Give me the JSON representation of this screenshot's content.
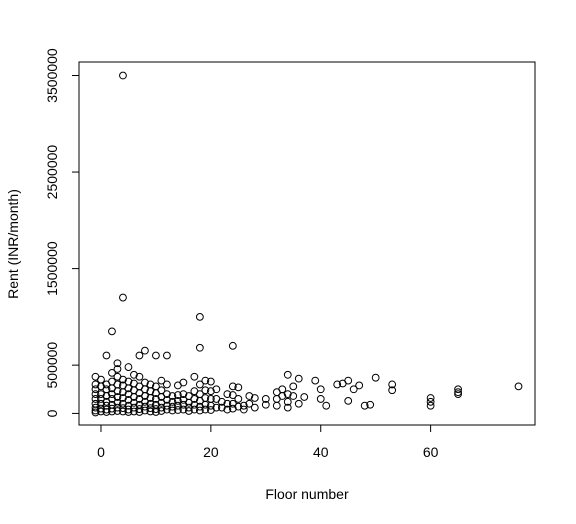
{
  "chart_data": {
    "type": "scatter",
    "title": "",
    "xlabel": "Floor number",
    "ylabel": "Rent (INR/month)",
    "xlim": [
      -4,
      79
    ],
    "ylim": [
      -120000,
      3640000
    ],
    "x_ticks": [
      0,
      20,
      40,
      60
    ],
    "y_ticks": [
      0,
      500000,
      1500000,
      2500000,
      3500000
    ],
    "grid": false,
    "legend": "none",
    "marker": "open-circle",
    "points": [
      [
        4,
        3500000
      ],
      [
        4,
        1200000
      ],
      [
        2,
        850000
      ],
      [
        18,
        1000000
      ],
      [
        18,
        680000
      ],
      [
        24,
        700000
      ],
      [
        8,
        650000
      ],
      [
        10,
        600000
      ],
      [
        12,
        600000
      ],
      [
        1,
        600000
      ],
      [
        7,
        600000
      ],
      [
        3,
        520000
      ],
      [
        5,
        480000
      ],
      [
        -1,
        380000
      ],
      [
        -1,
        300000
      ],
      [
        -1,
        250000
      ],
      [
        -1,
        200000
      ],
      [
        -1,
        150000
      ],
      [
        -1,
        100000
      ],
      [
        -1,
        60000
      ],
      [
        -1,
        30000
      ],
      [
        -1,
        10000
      ],
      [
        0,
        350000
      ],
      [
        0,
        280000
      ],
      [
        0,
        200000
      ],
      [
        0,
        150000
      ],
      [
        0,
        100000
      ],
      [
        0,
        50000
      ],
      [
        0,
        20000
      ],
      [
        1,
        300000
      ],
      [
        1,
        250000
      ],
      [
        1,
        180000
      ],
      [
        1,
        120000
      ],
      [
        1,
        80000
      ],
      [
        1,
        40000
      ],
      [
        1,
        15000
      ],
      [
        2,
        420000
      ],
      [
        2,
        330000
      ],
      [
        2,
        260000
      ],
      [
        2,
        200000
      ],
      [
        2,
        150000
      ],
      [
        2,
        90000
      ],
      [
        2,
        50000
      ],
      [
        2,
        20000
      ],
      [
        3,
        460000
      ],
      [
        3,
        380000
      ],
      [
        3,
        300000
      ],
      [
        3,
        230000
      ],
      [
        3,
        170000
      ],
      [
        3,
        110000
      ],
      [
        3,
        60000
      ],
      [
        3,
        25000
      ],
      [
        4,
        350000
      ],
      [
        4,
        290000
      ],
      [
        4,
        220000
      ],
      [
        4,
        160000
      ],
      [
        4,
        100000
      ],
      [
        4,
        55000
      ],
      [
        4,
        20000
      ],
      [
        5,
        330000
      ],
      [
        5,
        260000
      ],
      [
        5,
        200000
      ],
      [
        5,
        140000
      ],
      [
        5,
        80000
      ],
      [
        5,
        40000
      ],
      [
        5,
        15000
      ],
      [
        6,
        400000
      ],
      [
        6,
        310000
      ],
      [
        6,
        240000
      ],
      [
        6,
        170000
      ],
      [
        6,
        110000
      ],
      [
        6,
        60000
      ],
      [
        6,
        20000
      ],
      [
        7,
        380000
      ],
      [
        7,
        280000
      ],
      [
        7,
        210000
      ],
      [
        7,
        150000
      ],
      [
        7,
        90000
      ],
      [
        7,
        45000
      ],
      [
        7,
        15000
      ],
      [
        8,
        320000
      ],
      [
        8,
        250000
      ],
      [
        8,
        180000
      ],
      [
        8,
        120000
      ],
      [
        8,
        70000
      ],
      [
        8,
        30000
      ],
      [
        9,
        300000
      ],
      [
        9,
        230000
      ],
      [
        9,
        160000
      ],
      [
        9,
        100000
      ],
      [
        9,
        55000
      ],
      [
        9,
        20000
      ],
      [
        10,
        280000
      ],
      [
        10,
        210000
      ],
      [
        10,
        150000
      ],
      [
        10,
        90000
      ],
      [
        10,
        45000
      ],
      [
        10,
        15000
      ],
      [
        11,
        340000
      ],
      [
        11,
        240000
      ],
      [
        11,
        170000
      ],
      [
        11,
        110000
      ],
      [
        11,
        60000
      ],
      [
        11,
        25000
      ],
      [
        12,
        300000
      ],
      [
        12,
        200000
      ],
      [
        12,
        140000
      ],
      [
        12,
        80000
      ],
      [
        12,
        40000
      ],
      [
        13,
        180000
      ],
      [
        13,
        120000
      ],
      [
        13,
        70000
      ],
      [
        13,
        30000
      ],
      [
        14,
        290000
      ],
      [
        14,
        190000
      ],
      [
        14,
        130000
      ],
      [
        14,
        80000
      ],
      [
        14,
        35000
      ],
      [
        15,
        320000
      ],
      [
        15,
        200000
      ],
      [
        15,
        140000
      ],
      [
        15,
        90000
      ],
      [
        15,
        40000
      ],
      [
        16,
        180000
      ],
      [
        16,
        110000
      ],
      [
        16,
        60000
      ],
      [
        16,
        25000
      ],
      [
        17,
        380000
      ],
      [
        17,
        230000
      ],
      [
        17,
        150000
      ],
      [
        17,
        90000
      ],
      [
        17,
        40000
      ],
      [
        18,
        300000
      ],
      [
        18,
        200000
      ],
      [
        18,
        130000
      ],
      [
        18,
        70000
      ],
      [
        18,
        30000
      ],
      [
        19,
        340000
      ],
      [
        19,
        240000
      ],
      [
        19,
        160000
      ],
      [
        19,
        90000
      ],
      [
        19,
        40000
      ],
      [
        20,
        330000
      ],
      [
        20,
        230000
      ],
      [
        20,
        150000
      ],
      [
        20,
        80000
      ],
      [
        20,
        35000
      ],
      [
        21,
        250000
      ],
      [
        21,
        150000
      ],
      [
        21,
        60000
      ],
      [
        22,
        120000
      ],
      [
        22,
        60000
      ],
      [
        23,
        200000
      ],
      [
        23,
        100000
      ],
      [
        23,
        40000
      ],
      [
        24,
        280000
      ],
      [
        24,
        190000
      ],
      [
        24,
        100000
      ],
      [
        24,
        50000
      ],
      [
        25,
        270000
      ],
      [
        25,
        150000
      ],
      [
        25,
        70000
      ],
      [
        26,
        80000
      ],
      [
        26,
        40000
      ],
      [
        27,
        180000
      ],
      [
        27,
        100000
      ],
      [
        28,
        160000
      ],
      [
        28,
        60000
      ],
      [
        30,
        150000
      ],
      [
        30,
        90000
      ],
      [
        32,
        220000
      ],
      [
        32,
        150000
      ],
      [
        32,
        80000
      ],
      [
        33,
        250000
      ],
      [
        33,
        180000
      ],
      [
        34,
        400000
      ],
      [
        34,
        200000
      ],
      [
        34,
        120000
      ],
      [
        34,
        60000
      ],
      [
        35,
        280000
      ],
      [
        35,
        180000
      ],
      [
        36,
        360000
      ],
      [
        36,
        100000
      ],
      [
        37,
        170000
      ],
      [
        39,
        340000
      ],
      [
        40,
        250000
      ],
      [
        40,
        150000
      ],
      [
        41,
        80000
      ],
      [
        43,
        300000
      ],
      [
        44,
        310000
      ],
      [
        45,
        340000
      ],
      [
        45,
        130000
      ],
      [
        46,
        250000
      ],
      [
        47,
        290000
      ],
      [
        48,
        80000
      ],
      [
        49,
        90000
      ],
      [
        50,
        370000
      ],
      [
        53,
        300000
      ],
      [
        53,
        240000
      ],
      [
        60,
        160000
      ],
      [
        60,
        120000
      ],
      [
        60,
        80000
      ],
      [
        65,
        250000
      ],
      [
        65,
        220000
      ],
      [
        65,
        200000
      ],
      [
        76,
        280000
      ]
    ]
  }
}
